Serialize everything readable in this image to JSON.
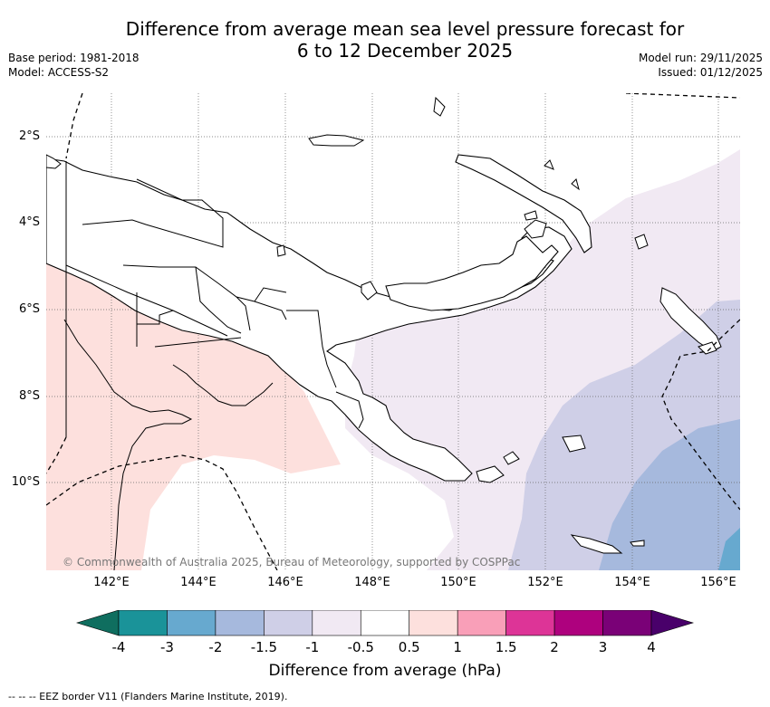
{
  "title": {
    "line1": "Difference from average mean sea level pressure forecast for",
    "line2": "6 to 12 December 2025"
  },
  "meta": {
    "base_period": "Base period: 1981-2018",
    "model": "Model: ACCESS-S2",
    "model_run": "Model run: 29/11/2025",
    "issued": "Issued: 01/12/2025"
  },
  "map": {
    "lat_labels": [
      "2°S",
      "4°S",
      "6°S",
      "8°S",
      "10°S"
    ],
    "lon_labels": [
      "142°E",
      "144°E",
      "146°E",
      "148°E",
      "150°E",
      "152°E",
      "154°E",
      "156°E"
    ],
    "copyright": "© Commonwealth of Australia 2025, Bureau of Meteorology, supported by COSPPac",
    "land_color": "#ffffff",
    "coast_color": "#000000"
  },
  "colorbar": {
    "title": "Difference from average (hPa)",
    "ticks": [
      "-4",
      "-3",
      "-2",
      "-1.5",
      "-1",
      "-0.5",
      "0.5",
      "1",
      "1.5",
      "2",
      "3",
      "4"
    ],
    "colors": [
      "#0f6e5f",
      "#1a9399",
      "#67a9cf",
      "#a6b9dd",
      "#cfcfe7",
      "#f1e9f3",
      "#ffffff",
      "#fde0dd",
      "#f99fb8",
      "#dd3497",
      "#ae017e",
      "#7a0177",
      "#49006a"
    ]
  },
  "footer": {
    "legend_text": "--  --  -- EEZ border V11 (Flanders Marine Institute, 2019)."
  }
}
